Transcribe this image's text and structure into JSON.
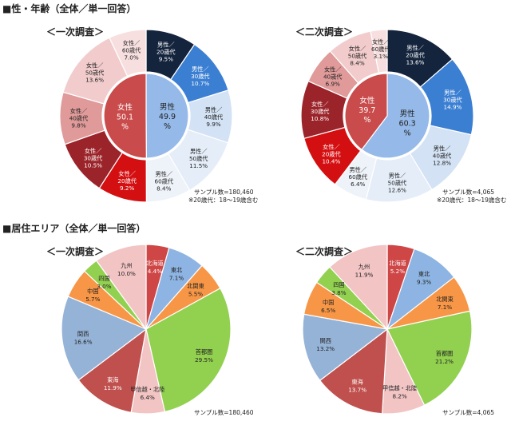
{
  "section1_title": "■性・年齢（全体／単一回答）",
  "section2_title": "■居住エリア（全体／単一回答）",
  "surveys": {
    "first": "＜一次調査＞",
    "second": "＜二次調査＞"
  },
  "notes": {
    "sample_first": "サンプル数=180,460",
    "sample_second": "サンプル数=4,065",
    "age_note": "※20歳代：18～19歳含む"
  },
  "chart_data": [
    {
      "id": "gender-age-first",
      "type": "pie",
      "subtype": "double-donut",
      "title": "＜一次調査＞",
      "inner": [
        {
          "label": "男性",
          "value": 49.9,
          "color": "#95b9e8"
        },
        {
          "label": "女性",
          "value": 50.1,
          "color": "#c94b4b"
        }
      ],
      "outer": [
        {
          "label": "男性／20歳代",
          "value": 9.5,
          "color": "#14243d"
        },
        {
          "label": "男性／30歳代",
          "value": 10.7,
          "color": "#3b7fd3"
        },
        {
          "label": "男性／40歳代",
          "value": 9.9,
          "color": "#d3e2f4"
        },
        {
          "label": "男性／50歳代",
          "value": 11.5,
          "color": "#e4edf8"
        },
        {
          "label": "男性／60歳代",
          "value": 8.4,
          "color": "#eef3fa"
        },
        {
          "label": "女性／20歳代",
          "value": 9.2,
          "color": "#d40f12"
        },
        {
          "label": "女性／30歳代",
          "value": 10.5,
          "color": "#9b242a"
        },
        {
          "label": "女性／40歳代",
          "value": 9.8,
          "color": "#e09a9a"
        },
        {
          "label": "女性／50歳代",
          "value": 13.6,
          "color": "#f2cccc"
        },
        {
          "label": "女性／60歳代",
          "value": 7.0,
          "color": "#f7dfdf"
        }
      ]
    },
    {
      "id": "gender-age-second",
      "type": "pie",
      "subtype": "double-donut",
      "title": "＜二次調査＞",
      "inner": [
        {
          "label": "男性",
          "value": 60.3,
          "color": "#95b9e8"
        },
        {
          "label": "女性",
          "value": 39.7,
          "color": "#c94b4b"
        }
      ],
      "outer": [
        {
          "label": "男性／20歳代",
          "value": 13.6,
          "color": "#14243d"
        },
        {
          "label": "男性／30歳代",
          "value": 14.9,
          "color": "#3b7fd3"
        },
        {
          "label": "男性／40歳代",
          "value": 12.8,
          "color": "#d3e2f4"
        },
        {
          "label": "男性／50歳代",
          "value": 12.6,
          "color": "#e4edf8"
        },
        {
          "label": "男性／60歳代",
          "value": 6.4,
          "color": "#eef3fa"
        },
        {
          "label": "女性／20歳代",
          "value": 10.4,
          "color": "#d40f12"
        },
        {
          "label": "女性／30歳代",
          "value": 10.8,
          "color": "#9b242a"
        },
        {
          "label": "女性／40歳代",
          "value": 6.9,
          "color": "#e09a9a"
        },
        {
          "label": "女性／50歳代",
          "value": 8.4,
          "color": "#f2cccc"
        },
        {
          "label": "女性／60歳代",
          "value": 3.1,
          "color": "#f7dfdf"
        }
      ]
    },
    {
      "id": "area-first",
      "type": "pie",
      "title": "＜一次調査＞",
      "categories": [
        "北海道",
        "東北",
        "北関東",
        "首都圏",
        "甲信越・北陸",
        "東海",
        "関西",
        "中国",
        "四国",
        "九州"
      ],
      "values": [
        4.4,
        7.1,
        5.5,
        29.5,
        6.4,
        11.9,
        16.6,
        5.7,
        3.0,
        10.0
      ],
      "colors": [
        "#cf4646",
        "#8db4e2",
        "#f79646",
        "#92d050",
        "#f2c4c4",
        "#c0504d",
        "#95b3d7",
        "#f79646",
        "#92d050",
        "#f2c4c4"
      ]
    },
    {
      "id": "area-second",
      "type": "pie",
      "title": "＜二次調査＞",
      "categories": [
        "北海道",
        "東北",
        "北関東",
        "首都圏",
        "甲信越・北陸",
        "東海",
        "関西",
        "中国",
        "四国",
        "九州"
      ],
      "values": [
        5.2,
        9.3,
        7.1,
        21.2,
        8.2,
        13.7,
        13.2,
        6.5,
        3.8,
        11.9
      ],
      "colors": [
        "#cf4646",
        "#8db4e2",
        "#f79646",
        "#92d050",
        "#f2c4c4",
        "#c0504d",
        "#95b3d7",
        "#f79646",
        "#92d050",
        "#f2c4c4"
      ]
    }
  ]
}
